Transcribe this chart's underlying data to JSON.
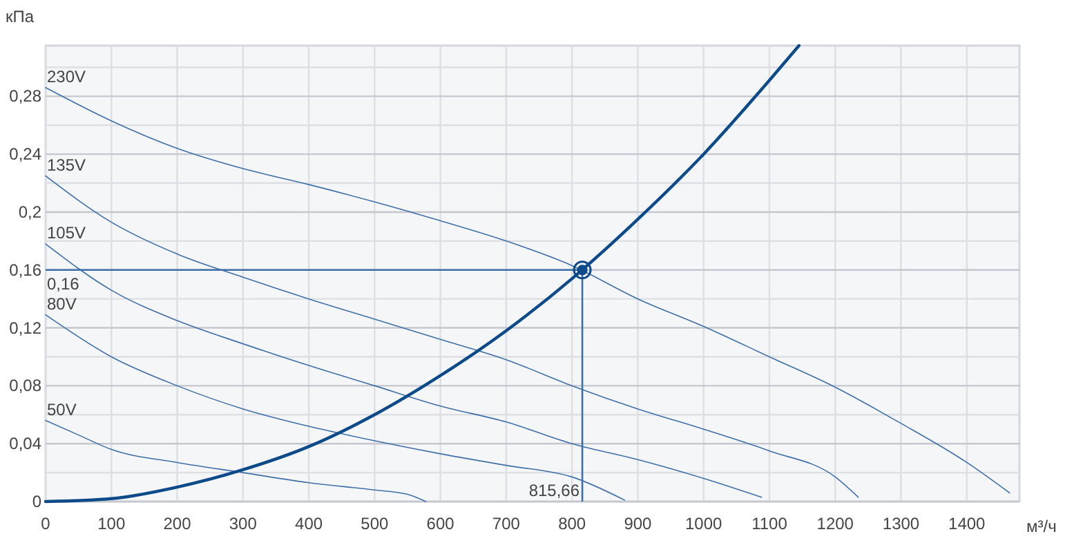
{
  "chart_data": {
    "type": "line",
    "xlabel": "м³/ч",
    "ylabel": "кПа",
    "xlim": [
      0,
      1480
    ],
    "ylim": [
      0,
      0.315
    ],
    "xticks": [
      0,
      100,
      200,
      300,
      400,
      500,
      600,
      700,
      800,
      900,
      1000,
      1100,
      1200,
      1300,
      1400
    ],
    "yticks": [
      0,
      {
        "value": 0.02,
        "label": null
      },
      {
        "value": 0.04,
        "label": "0,04"
      },
      {
        "value": 0.06,
        "label": null
      },
      {
        "value": 0.08,
        "label": "0,08"
      },
      {
        "value": 0.1,
        "label": null
      },
      {
        "value": 0.12,
        "label": "0,12"
      },
      {
        "value": 0.14,
        "label": null
      },
      {
        "value": 0.16,
        "label": "0,16"
      },
      {
        "value": 0.18,
        "label": null
      },
      {
        "value": 0.2,
        "label": "0,2"
      },
      {
        "value": 0.22,
        "label": null
      },
      {
        "value": 0.24,
        "label": "0,24"
      },
      {
        "value": 0.26,
        "label": null
      },
      {
        "value": 0.28,
        "label": "0,28"
      },
      {
        "value": 0.3,
        "label": null
      }
    ],
    "grid": true,
    "marker": "none",
    "line_style": "solid",
    "series": [
      {
        "name": "230V",
        "color": "#3f6fa8",
        "x": [
          0,
          100,
          200,
          300,
          400,
          500,
          600,
          700,
          800,
          900,
          1000,
          1100,
          1200,
          1300,
          1400,
          1465
        ],
        "values": [
          0.286,
          0.263,
          0.244,
          0.23,
          0.219,
          0.207,
          0.194,
          0.18,
          0.163,
          0.14,
          0.121,
          0.1,
          0.079,
          0.054,
          0.027,
          0.006
        ]
      },
      {
        "name": "135V",
        "color": "#3f6fa8",
        "x": [
          0,
          100,
          200,
          300,
          400,
          500,
          600,
          700,
          800,
          900,
          1000,
          1100,
          1200,
          1235
        ],
        "values": [
          0.225,
          0.193,
          0.171,
          0.155,
          0.14,
          0.126,
          0.112,
          0.098,
          0.08,
          0.064,
          0.05,
          0.035,
          0.017,
          0.003
        ]
      },
      {
        "name": "105V",
        "color": "#3f6fa8",
        "x": [
          0,
          100,
          200,
          300,
          400,
          500,
          600,
          700,
          800,
          900,
          1000,
          1088
        ],
        "values": [
          0.178,
          0.146,
          0.125,
          0.109,
          0.094,
          0.08,
          0.066,
          0.055,
          0.04,
          0.029,
          0.016,
          0.003
        ]
      },
      {
        "name": "80V",
        "color": "#3f6fa8",
        "x": [
          0,
          100,
          200,
          300,
          400,
          500,
          600,
          700,
          800,
          880
        ],
        "values": [
          0.129,
          0.1,
          0.08,
          0.064,
          0.052,
          0.042,
          0.033,
          0.025,
          0.017,
          0.001
        ]
      },
      {
        "name": "50V",
        "color": "#3f6fa8",
        "x": [
          0,
          50,
          100,
          200,
          300,
          400,
          500,
          550,
          578
        ],
        "values": [
          0.056,
          0.046,
          0.036,
          0.027,
          0.02,
          0.013,
          0.008,
          0.005,
          0
        ]
      },
      {
        "color": "#0d4a8a",
        "x": [
          0,
          100,
          200,
          300,
          400,
          500,
          600,
          700,
          800,
          900,
          1000,
          1100,
          1145
        ],
        "values": [
          0,
          0.002,
          0.01,
          0.022,
          0.038,
          0.06,
          0.087,
          0.118,
          0.154,
          0.195,
          0.24,
          0.291,
          0.315
        ]
      },
      {
        "type": "scatter",
        "marker": "circle",
        "color": "#0d4a8a",
        "x": [
          815.66
        ],
        "values": [
          0.16
        ]
      }
    ],
    "ref_lines": [
      {
        "axis": "y",
        "value": 0.16,
        "label": "0,16",
        "color": "#3f6fa8"
      },
      {
        "axis": "x",
        "value": 815.66,
        "label": "815,66",
        "color": "#3f6fa8"
      }
    ]
  }
}
